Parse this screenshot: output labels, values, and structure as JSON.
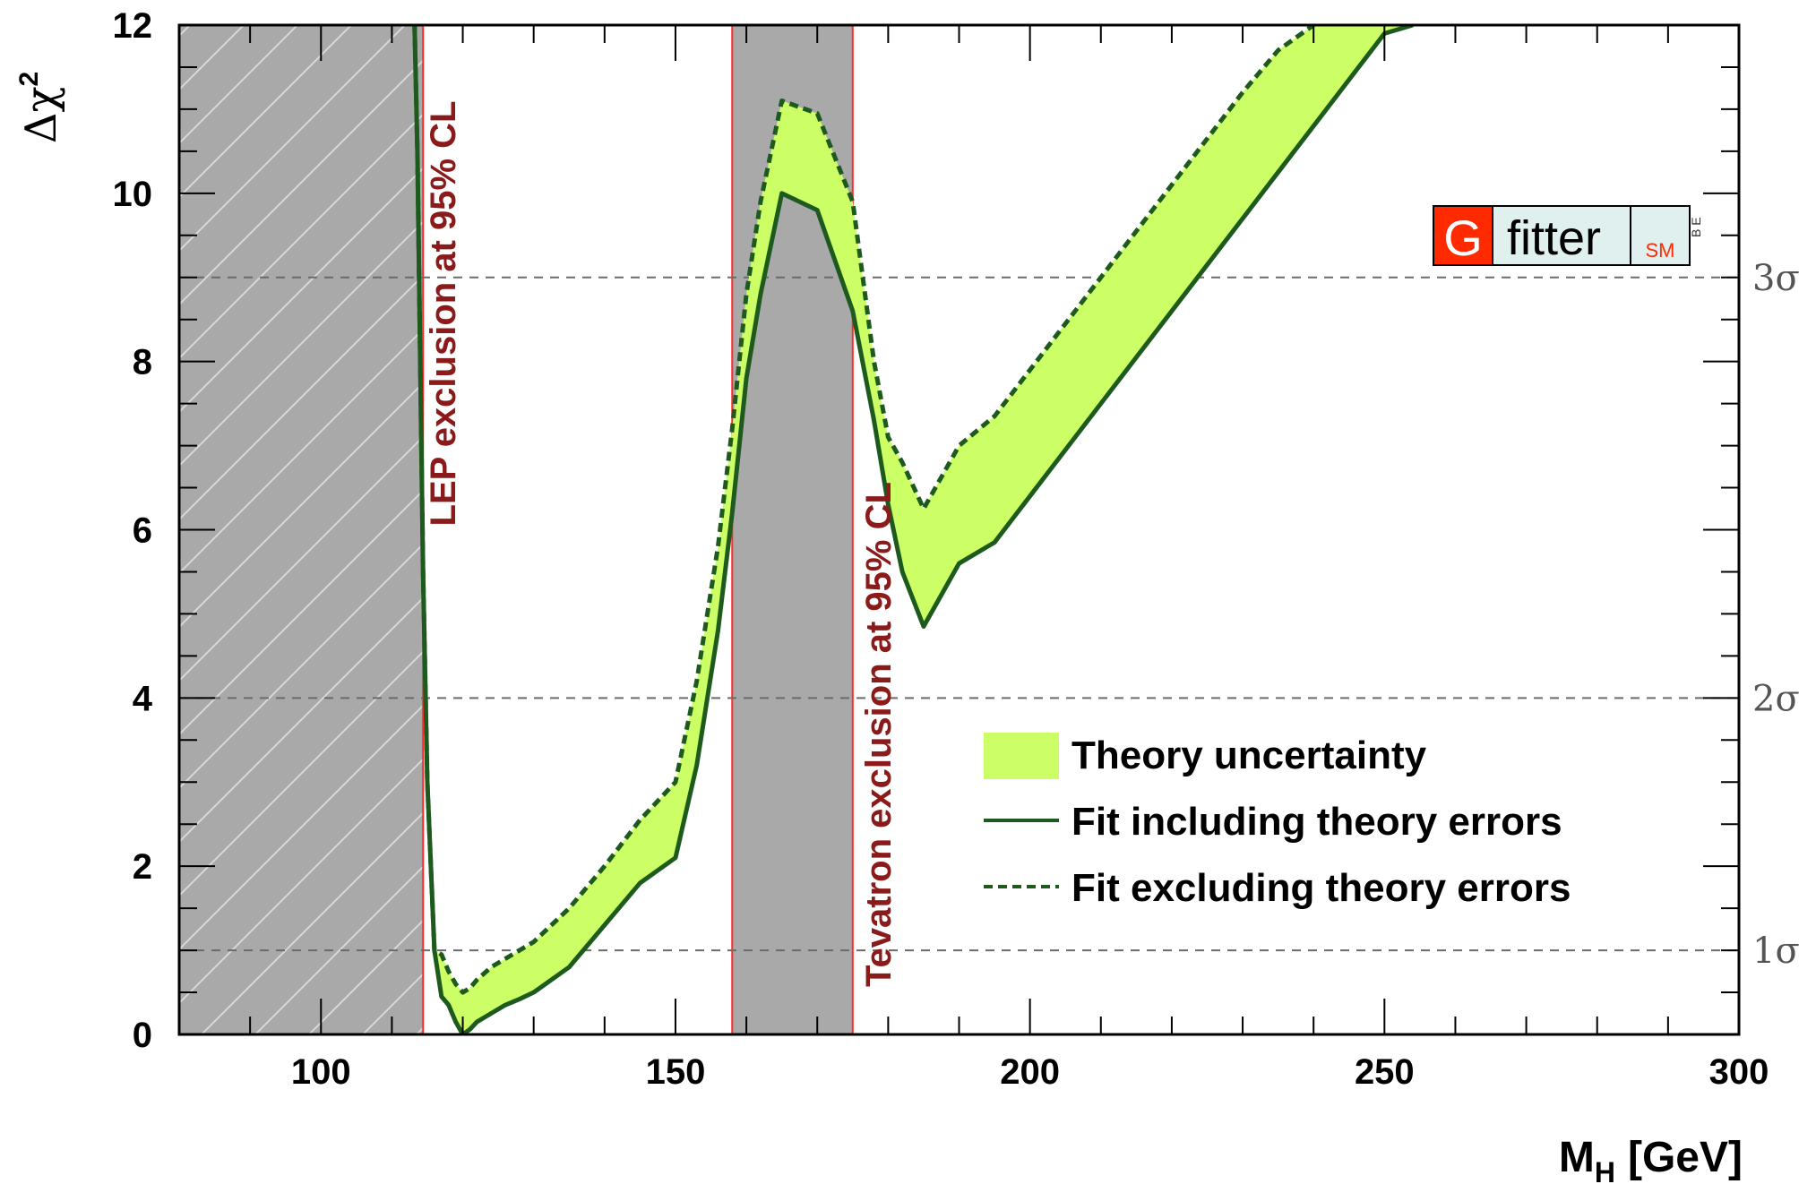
{
  "chart_data": {
    "type": "line",
    "xlabel_main": "M",
    "xlabel_sub": "H",
    "xlabel_unit": "[GeV]",
    "ylabel_main": "Δχ",
    "ylabel_sup": "2",
    "xlim": [
      80,
      300
    ],
    "ylim": [
      0,
      12
    ],
    "x_ticks": [
      100,
      150,
      200,
      250,
      300
    ],
    "y_ticks": [
      0,
      2,
      4,
      6,
      8,
      10,
      12
    ],
    "sigma_lines": [
      {
        "y": 1,
        "label": "1σ"
      },
      {
        "y": 4,
        "label": "2σ"
      },
      {
        "y": 9,
        "label": "3σ"
      }
    ],
    "excluded_regions": [
      {
        "x": [
          80,
          114.4
        ],
        "label": "LEP exclusion at 95% CL"
      },
      {
        "x": [
          158,
          175
        ],
        "label": "Tevatron exclusion at 95% CL"
      }
    ],
    "series": [
      {
        "name": "Fit including theory errors",
        "style": "solid",
        "x": [
          113.2,
          113.6,
          114.0,
          114.4,
          115,
          116,
          117,
          118,
          119,
          120,
          121,
          122,
          124,
          126,
          128,
          130,
          135,
          140,
          145,
          150,
          153,
          156,
          158,
          160,
          162,
          165,
          170,
          175,
          178,
          180,
          182,
          185,
          188,
          190,
          195,
          200,
          210,
          220,
          230,
          240,
          250,
          254
        ],
        "values": [
          12.0,
          10.5,
          8.0,
          5.5,
          3.0,
          1.0,
          0.45,
          0.35,
          0.15,
          0.0,
          0.06,
          0.15,
          0.25,
          0.35,
          0.42,
          0.5,
          0.8,
          1.3,
          1.8,
          2.1,
          3.2,
          4.8,
          6.2,
          7.8,
          8.8,
          10.0,
          9.8,
          8.6,
          7.3,
          6.3,
          5.5,
          4.85,
          5.3,
          5.6,
          5.85,
          6.4,
          7.5,
          8.6,
          9.7,
          10.8,
          11.9,
          12.0
        ]
      },
      {
        "name": "Fit excluding theory errors",
        "style": "dashed",
        "x": [
          113.2,
          113.6,
          114.0,
          114.4,
          115,
          116,
          117,
          118,
          119,
          120,
          121,
          122,
          124,
          126,
          128,
          130,
          135,
          140,
          145,
          150,
          153,
          156,
          158,
          160,
          162,
          165,
          170,
          175,
          178,
          180,
          182,
          185,
          188,
          190,
          195,
          200,
          210,
          220,
          230,
          235,
          240
        ],
        "values": [
          12.0,
          10.5,
          8.0,
          5.5,
          3.0,
          1.0,
          0.95,
          0.75,
          0.6,
          0.5,
          0.55,
          0.65,
          0.8,
          0.9,
          1.0,
          1.1,
          1.5,
          2.0,
          2.55,
          3.0,
          4.2,
          5.8,
          7.2,
          8.8,
          9.9,
          11.1,
          10.95,
          9.9,
          8.0,
          7.1,
          6.8,
          6.25,
          6.7,
          7.0,
          7.35,
          7.9,
          9.0,
          10.1,
          11.2,
          11.7,
          12.0
        ]
      }
    ],
    "legend": {
      "placement": "bottom-right",
      "entries": [
        "Theory uncertainty",
        "Fit including theory errors",
        "Fit excluding theory errors"
      ]
    },
    "colors": {
      "band": "#ccff66",
      "curve": "#1e5a1e",
      "exclusion_fill": "#a9a9a9",
      "exclusion_border": "#ff2a2a",
      "exclusion_text": "#8b1a1a",
      "sigma_line": "#6b6b6b"
    }
  },
  "logo": {
    "letter": "G",
    "word": "fitter",
    "sub": "SM",
    "side": "B E"
  }
}
